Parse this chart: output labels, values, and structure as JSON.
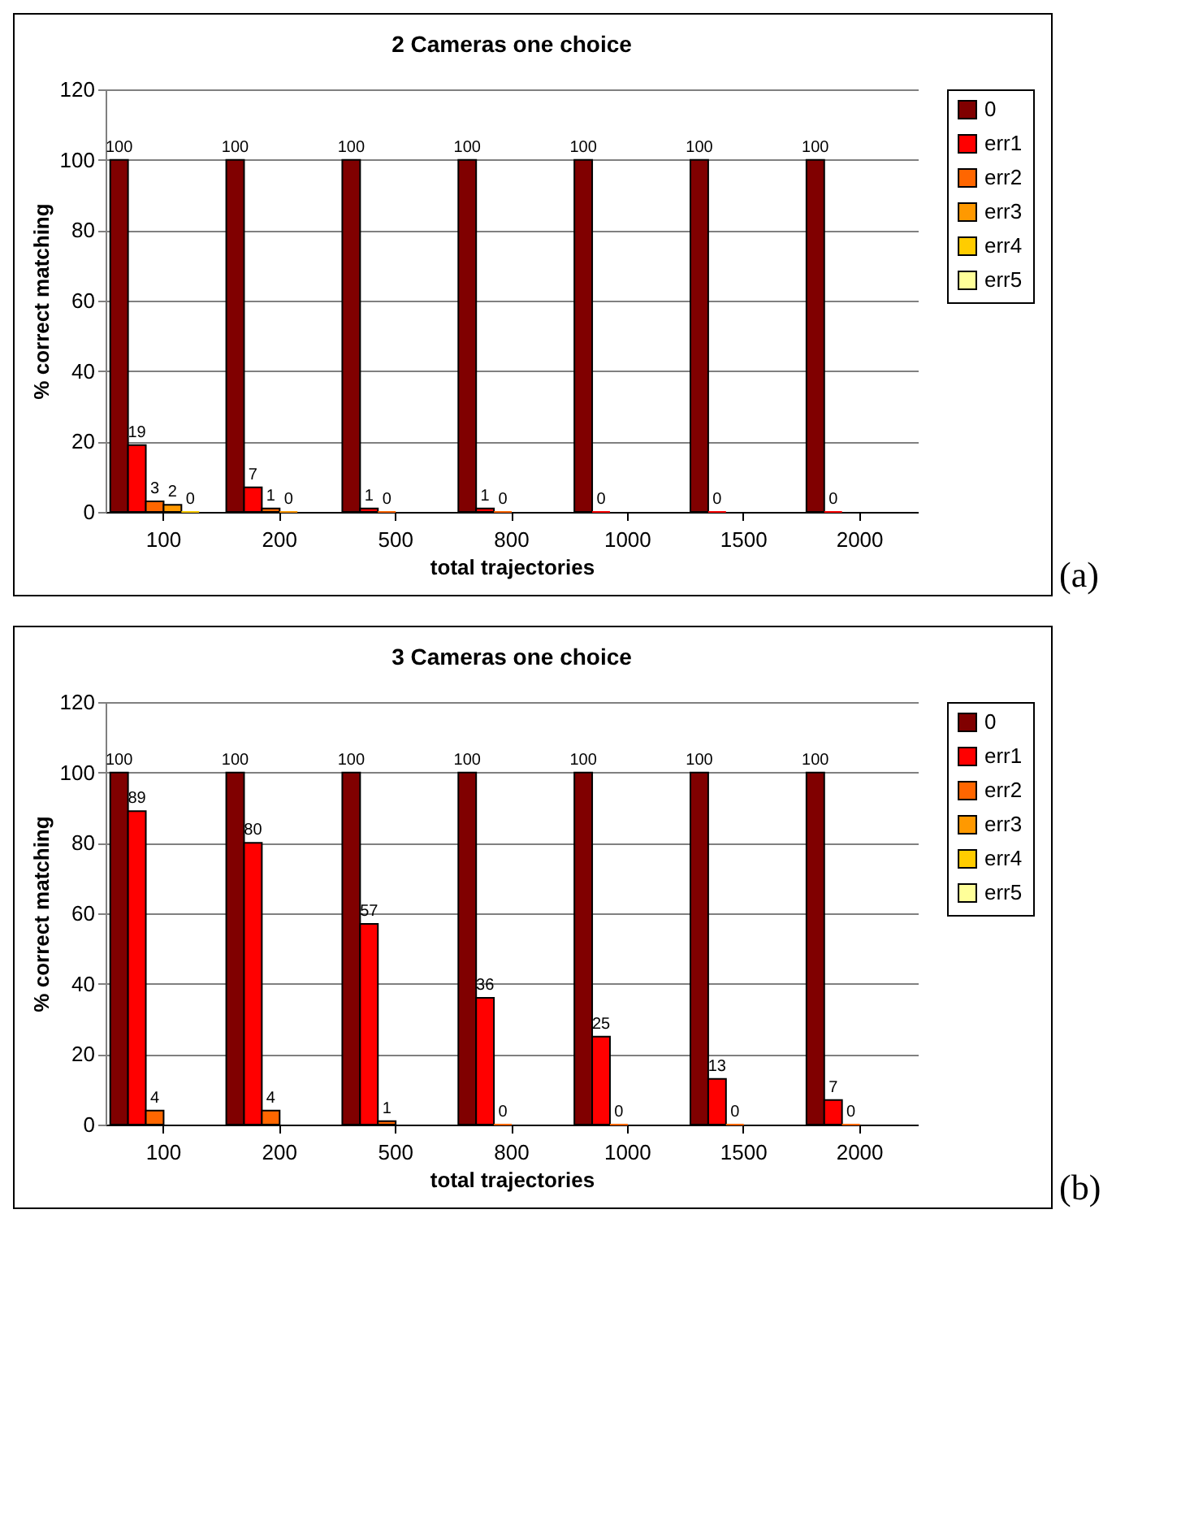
{
  "chart_data": [
    {
      "type": "bar",
      "title": "2 Cameras one choice",
      "xlabel": "total trajectories",
      "ylabel": "% correct matching",
      "categories": [
        "100",
        "200",
        "500",
        "800",
        "1000",
        "1500",
        "2000"
      ],
      "ylim": [
        0,
        120
      ],
      "yticks": [
        0,
        20,
        40,
        60,
        80,
        100,
        120
      ],
      "grid": "y",
      "legend": "right",
      "annotations": [
        "(a)"
      ],
      "series": [
        {
          "name": "0",
          "color": "#800000",
          "values": [
            100,
            100,
            100,
            100,
            100,
            100,
            100
          ],
          "value_labels": [
            "100",
            "100",
            "100",
            "100",
            "100",
            "100",
            "100"
          ]
        },
        {
          "name": "err1",
          "color": "#ff0000",
          "values": [
            19,
            7,
            1,
            1,
            0,
            0,
            0
          ],
          "value_labels": [
            "19",
            "7",
            "1",
            "1",
            "0",
            "0",
            "0"
          ]
        },
        {
          "name": "err2",
          "color": "#ff6600",
          "values": [
            3,
            1,
            0,
            0,
            null,
            null,
            null
          ],
          "value_labels": [
            "3",
            "1",
            "0",
            "0",
            null,
            null,
            null
          ]
        },
        {
          "name": "err3",
          "color": "#ff9900",
          "values": [
            2,
            0,
            null,
            null,
            null,
            null,
            null
          ],
          "value_labels": [
            "2",
            "0",
            null,
            null,
            null,
            null,
            null
          ]
        },
        {
          "name": "err4",
          "color": "#ffcc00",
          "values": [
            0,
            null,
            null,
            null,
            null,
            null,
            null
          ],
          "value_labels": [
            "0",
            null,
            null,
            null,
            null,
            null,
            null
          ]
        },
        {
          "name": "err5",
          "color": "#ffff99",
          "values": [
            null,
            null,
            null,
            null,
            null,
            null,
            null
          ]
        }
      ]
    },
    {
      "type": "bar",
      "title": "3 Cameras one choice",
      "xlabel": "total trajectories",
      "ylabel": "% correct matching",
      "categories": [
        "100",
        "200",
        "500",
        "800",
        "1000",
        "1500",
        "2000"
      ],
      "ylim": [
        0,
        120
      ],
      "yticks": [
        0,
        20,
        40,
        60,
        80,
        100,
        120
      ],
      "grid": "y",
      "legend": "right",
      "annotations": [
        "(b)"
      ],
      "series": [
        {
          "name": "0",
          "color": "#800000",
          "values": [
            100,
            100,
            100,
            100,
            100,
            100,
            100
          ],
          "value_labels": [
            "100",
            "100",
            "100",
            "100",
            "100",
            "100",
            "100"
          ]
        },
        {
          "name": "err1",
          "color": "#ff0000",
          "values": [
            89,
            80,
            57,
            36,
            25,
            13,
            7
          ],
          "value_labels": [
            "89",
            "80",
            "57",
            "36",
            "25",
            "13",
            "7"
          ]
        },
        {
          "name": "err2",
          "color": "#ff6600",
          "values": [
            4,
            4,
            1,
            0,
            0,
            0,
            0
          ],
          "value_labels": [
            "4",
            "4",
            "1",
            "0",
            "0",
            "0",
            "0"
          ]
        },
        {
          "name": "err3",
          "color": "#ff9900",
          "values": [
            null,
            null,
            null,
            null,
            null,
            null,
            null
          ]
        },
        {
          "name": "err4",
          "color": "#ffcc00",
          "values": [
            null,
            null,
            null,
            null,
            null,
            null,
            null
          ]
        },
        {
          "name": "err5",
          "color": "#ffff99",
          "values": [
            null,
            null,
            null,
            null,
            null,
            null,
            null
          ]
        }
      ]
    }
  ]
}
